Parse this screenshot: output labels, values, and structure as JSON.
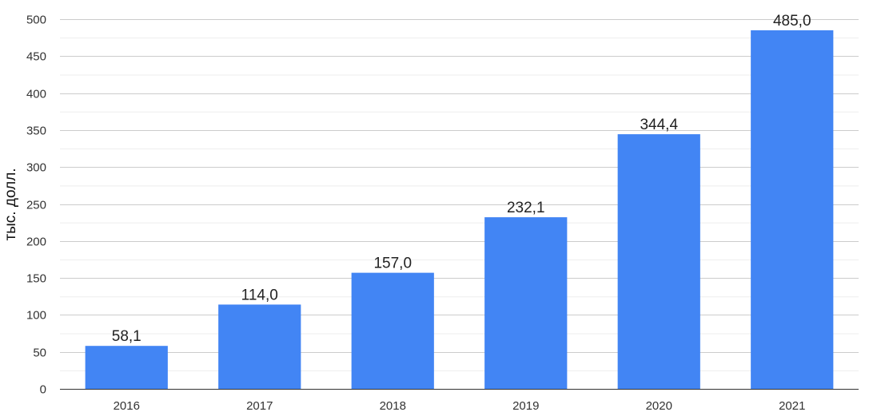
{
  "chart_data": {
    "type": "bar",
    "categories": [
      "2016",
      "2017",
      "2018",
      "2019",
      "2020",
      "2021"
    ],
    "values": [
      58.1,
      114.0,
      157.0,
      232.1,
      344.4,
      485.0
    ],
    "value_labels": [
      "58,1",
      "114,0",
      "157,0",
      "232,1",
      "344,4",
      "485,0"
    ],
    "title": "",
    "xlabel": "",
    "ylabel": "тыс. долл.",
    "ylim": [
      0,
      500
    ],
    "yticks": [
      0,
      50,
      100,
      150,
      200,
      250,
      300,
      350,
      400,
      450,
      500
    ],
    "grid": true,
    "minor_grid": true,
    "legend": "none",
    "colors": {
      "bar": "#4285F4",
      "major_grid": "#CCCCCC",
      "minor_grid": "#EEEEEE",
      "axis": "#333333"
    }
  }
}
